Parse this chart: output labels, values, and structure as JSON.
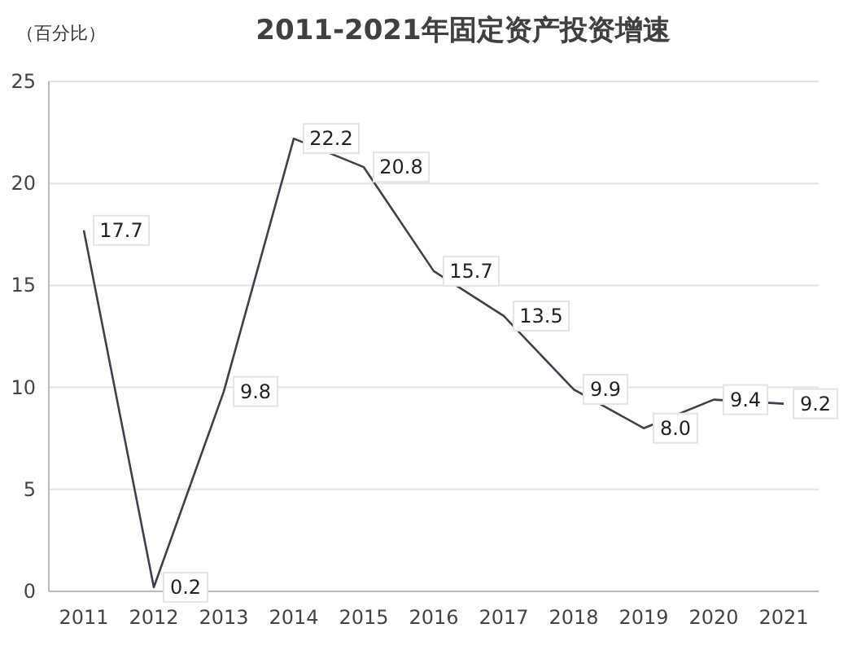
{
  "chart_data": {
    "type": "line",
    "title": "2011-2021年固定资产投资增速",
    "ylabel": "（百分比）",
    "categories": [
      "2011",
      "2012",
      "2013",
      "2014",
      "2015",
      "2016",
      "2017",
      "2018",
      "2019",
      "2020",
      "2021"
    ],
    "series": [
      {
        "color": "#3f3f4f",
        "values": [
          17.7,
          0.2,
          9.8,
          22.2,
          20.8,
          15.7,
          13.5,
          9.9,
          8.0,
          9.4,
          9.2
        ],
        "value_labels": [
          "17.7",
          "0.2",
          "9.8",
          "22.2",
          "20.8",
          "15.7",
          "13.5",
          "9.9",
          "8.0",
          "9.4",
          "9.2"
        ]
      }
    ],
    "ylim": [
      0,
      25
    ],
    "yticks": [
      0,
      5,
      10,
      15,
      20,
      25
    ],
    "grid": "y",
    "marker": "none",
    "line_style": "solid"
  }
}
